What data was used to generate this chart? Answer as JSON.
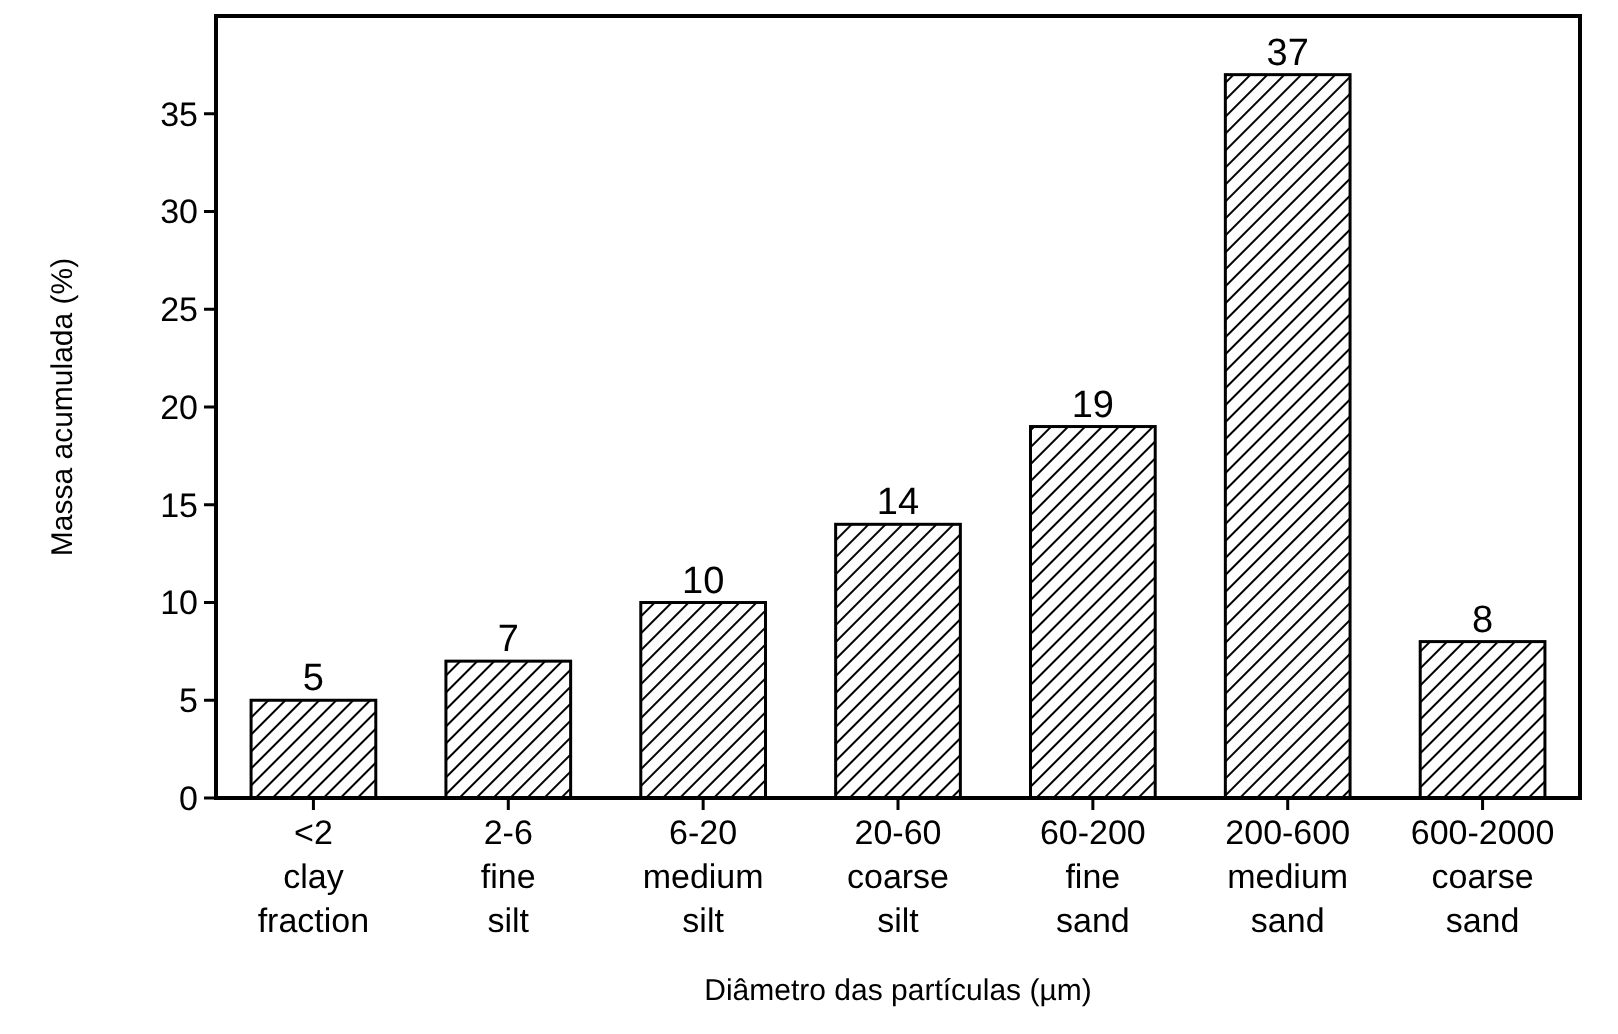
{
  "chart_data": {
    "type": "bar",
    "xlabel": "Diâmetro das partículas (µm)",
    "ylabel": "Massa acumulada (%)",
    "categories": [
      "<2\nclay\nfraction",
      "2-6\nfine\nsilt",
      "6-20\nmedium\nsilt",
      "20-60\ncoarse\nsilt",
      "60-200\nfine\nsand",
      "200-600\nmedium\nsand",
      "600-2000\ncoarse\nsand"
    ],
    "values": [
      5,
      7,
      10,
      14,
      19,
      37,
      8
    ],
    "color": "#000000",
    "data_labels": true,
    "ylim": [
      0,
      40
    ],
    "yticks": [
      0,
      5,
      10,
      15,
      20,
      25,
      30,
      35
    ]
  }
}
